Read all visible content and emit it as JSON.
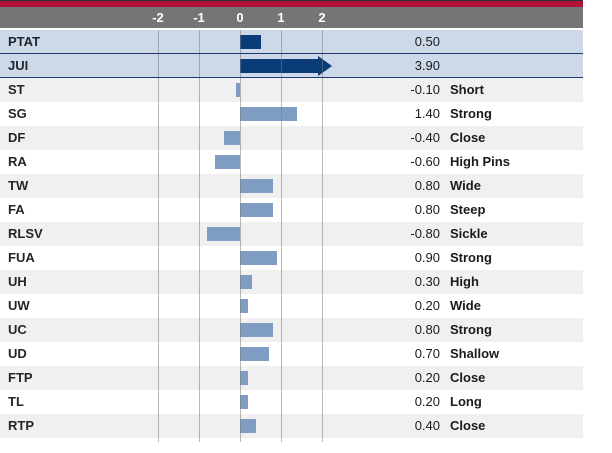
{
  "colors": {
    "accent_red": "#b01235",
    "accent_top_line": "#2e3340",
    "header_gray": "#757575",
    "highlight_row_bg": "#cdd9e9",
    "highlight_border_navy": "#1c3a6d",
    "bar_navy": "#0b3c7a",
    "bar_steel_blue": "#7f9cc3",
    "row_alt_gray": "#f0f0f0",
    "row_white": "#ffffff",
    "gridline_gray": "#7d7d7d",
    "text_dark": "#1b1b1b",
    "axis_text_white": "#ffffff"
  },
  "chart_data": {
    "type": "bar",
    "orientation": "horizontal",
    "title": "",
    "xlabel": "",
    "ylabel": "",
    "xlim": [
      -2,
      2
    ],
    "x_tick_labels": [
      "-2",
      "-1",
      "0",
      "1",
      "2"
    ],
    "x_tick_values": [
      -2,
      -1,
      0,
      1,
      2
    ],
    "grid": "vertical-gridlines-on",
    "legend": "none",
    "rows": [
      {
        "label": "PTAT",
        "value": 0.5,
        "value_display": "0.50",
        "descriptor": "",
        "highlight": true,
        "overflow_arrow": false
      },
      {
        "label": "JUI",
        "value": 3.9,
        "value_display": "3.90",
        "descriptor": "",
        "highlight": true,
        "overflow_arrow": true
      },
      {
        "label": "ST",
        "value": -0.1,
        "value_display": "-0.10",
        "descriptor": "Short",
        "highlight": false,
        "overflow_arrow": false
      },
      {
        "label": "SG",
        "value": 1.4,
        "value_display": "1.40",
        "descriptor": "Strong",
        "highlight": false,
        "overflow_arrow": false
      },
      {
        "label": "DF",
        "value": -0.4,
        "value_display": "-0.40",
        "descriptor": "Close",
        "highlight": false,
        "overflow_arrow": false
      },
      {
        "label": "RA",
        "value": -0.6,
        "value_display": "-0.60",
        "descriptor": "High Pins",
        "highlight": false,
        "overflow_arrow": false
      },
      {
        "label": "TW",
        "value": 0.8,
        "value_display": "0.80",
        "descriptor": "Wide",
        "highlight": false,
        "overflow_arrow": false
      },
      {
        "label": "FA",
        "value": 0.8,
        "value_display": "0.80",
        "descriptor": "Steep",
        "highlight": false,
        "overflow_arrow": false
      },
      {
        "label": "RLSV",
        "value": -0.8,
        "value_display": "-0.80",
        "descriptor": "Sickle",
        "highlight": false,
        "overflow_arrow": false
      },
      {
        "label": "FUA",
        "value": 0.9,
        "value_display": "0.90",
        "descriptor": "Strong",
        "highlight": false,
        "overflow_arrow": false
      },
      {
        "label": "UH",
        "value": 0.3,
        "value_display": "0.30",
        "descriptor": "High",
        "highlight": false,
        "overflow_arrow": false
      },
      {
        "label": "UW",
        "value": 0.2,
        "value_display": "0.20",
        "descriptor": "Wide",
        "highlight": false,
        "overflow_arrow": false
      },
      {
        "label": "UC",
        "value": 0.8,
        "value_display": "0.80",
        "descriptor": "Strong",
        "highlight": false,
        "overflow_arrow": false
      },
      {
        "label": "UD",
        "value": 0.7,
        "value_display": "0.70",
        "descriptor": "Shallow",
        "highlight": false,
        "overflow_arrow": false
      },
      {
        "label": "FTP",
        "value": 0.2,
        "value_display": "0.20",
        "descriptor": "Close",
        "highlight": false,
        "overflow_arrow": false
      },
      {
        "label": "TL",
        "value": 0.2,
        "value_display": "0.20",
        "descriptor": "Long",
        "highlight": false,
        "overflow_arrow": false
      },
      {
        "label": "RTP",
        "value": 0.4,
        "value_display": "0.40",
        "descriptor": "Close",
        "highlight": false,
        "overflow_arrow": false
      }
    ]
  }
}
